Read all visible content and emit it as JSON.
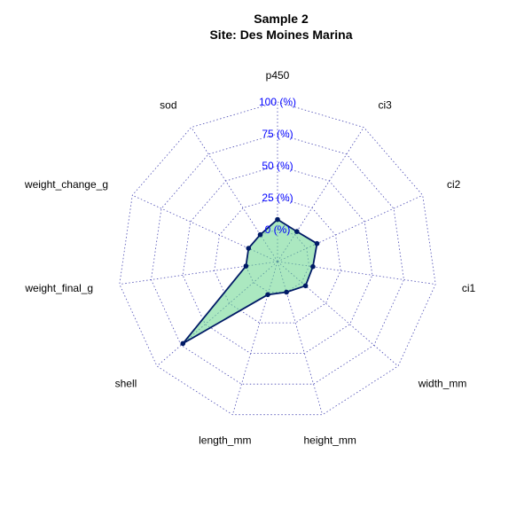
{
  "chart_data": {
    "type": "radar",
    "title": "Sample 2",
    "subtitle": "Site: Des Moines Marina",
    "axes": [
      "p450",
      "ci3",
      "ci2",
      "ci1",
      "width_mm",
      "height_mm",
      "length_mm",
      "shell",
      "weight_final_g",
      "weight_change_g",
      "sod"
    ],
    "values": [
      8,
      3,
      9,
      3,
      4,
      0,
      2,
      73,
      0,
      0,
      0
    ],
    "rlim": [
      -25,
      100
    ],
    "ring_values": [
      0,
      25,
      50,
      75,
      100
    ],
    "ring_labels": [
      "0 (%)",
      "25 (%)",
      "50 (%)",
      "75 (%)",
      "100 (%)"
    ],
    "colors": {
      "fill": "#66d68c",
      "line": "#001a66",
      "grid": "#4b4bb4",
      "ring_label": "#0000ff"
    }
  }
}
